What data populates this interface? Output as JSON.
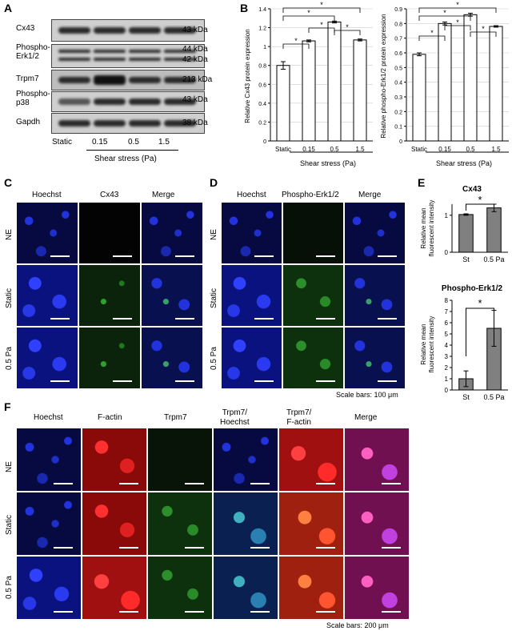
{
  "panels": {
    "A": "A",
    "B": "B",
    "C": "C",
    "D": "D",
    "E": "E",
    "F": "F"
  },
  "panelA": {
    "rows": [
      {
        "name": "Cx43",
        "kda": "43 kDa"
      },
      {
        "name": "Phospho-\nErk1/2",
        "kda": "44 kDa\n42 kDa"
      },
      {
        "name": "Trpm7",
        "kda": "213 kDa"
      },
      {
        "name": "Phospho-\np38",
        "kda": "43 kDa"
      },
      {
        "name": "Gapdh",
        "kda": "38 kDa"
      }
    ],
    "conditions": [
      "Static",
      "0.15",
      "0.5",
      "1.5"
    ],
    "xlabel": "Shear stress (Pa)"
  },
  "panelC": {
    "headers": [
      "Hoechst",
      "Cx43",
      "Merge"
    ],
    "rows": [
      "NE",
      "Static",
      "0.5 Pa"
    ]
  },
  "panelD": {
    "headers": [
      "Hoechst",
      "Phospho-Erk1/2",
      "Merge"
    ],
    "rows": [
      "NE",
      "Static",
      "0.5 Pa"
    ],
    "scalebar": "Scale bars: 100 μm"
  },
  "panelF": {
    "headers": [
      "Hoechst",
      "F-actin",
      "Trpm7",
      "Trpm7/\nHoechst",
      "Trpm7/\nF-actin",
      "Merge"
    ],
    "rows": [
      "NE",
      "Static",
      "0.5 Pa"
    ],
    "scalebar": "Scale bars: 200 μm"
  },
  "star": "*",
  "chart_data": [
    {
      "type": "bar",
      "panel": "B-left",
      "categories": [
        "Static",
        "0.15",
        "0.5",
        "1.5"
      ],
      "values": [
        0.8,
        1.06,
        1.26,
        1.07
      ],
      "errors": [
        0.04,
        0.01,
        0.01,
        0.01
      ],
      "ylabel": "Relative Cx43 protein expression",
      "xlabel": "Shear stress (Pa)",
      "ylim": [
        0,
        1.4
      ],
      "yticks": [
        "0",
        "0.2",
        "0.4",
        "0.6",
        "0.8",
        "1",
        "1.2",
        "1.4"
      ],
      "color": "#ffffff"
    },
    {
      "type": "bar",
      "panel": "B-right",
      "categories": [
        "Static",
        "0.15",
        "0.5",
        "1.5"
      ],
      "values": [
        0.59,
        0.8,
        0.86,
        0.78
      ],
      "errors": [
        0.01,
        0.01,
        0.01,
        0.005
      ],
      "ylabel": "Relative phospho-Erk1/2 protein expression",
      "xlabel": "Shear stress (Pa)",
      "ylim": [
        0,
        0.9
      ],
      "yticks": [
        "0",
        "0.1",
        "0.2",
        "0.3",
        "0.4",
        "0.5",
        "0.6",
        "0.7",
        "0.8",
        "0.9"
      ],
      "color": "#ffffff"
    },
    {
      "type": "bar",
      "panel": "E-top",
      "title": "Cx43",
      "categories": [
        "St",
        "0.5 Pa"
      ],
      "values": [
        1.02,
        1.2
      ],
      "errors": [
        0.02,
        0.1
      ],
      "ylabel": "Relative mean\nfluorescent intensity",
      "ylim": [
        0,
        1.3
      ],
      "yticks": [
        "0",
        "1"
      ],
      "color": "#808080"
    },
    {
      "type": "bar",
      "panel": "E-bottom",
      "title": "Phospho-Erk1/2",
      "categories": [
        "St",
        "0.5 Pa"
      ],
      "values": [
        1.0,
        5.5
      ],
      "errors": [
        0.7,
        1.6
      ],
      "ylabel": "Relative mean\nfluorescent intensity",
      "ylim": [
        0,
        8
      ],
      "yticks": [
        "0",
        "1",
        "2",
        "3",
        "4",
        "5",
        "6",
        "7",
        "8"
      ],
      "color": "#808080"
    }
  ]
}
